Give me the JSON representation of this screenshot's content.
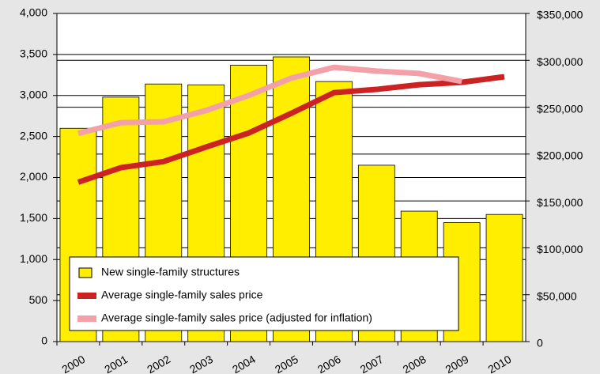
{
  "chart_data": {
    "type": "bar-line",
    "categories": [
      "2000",
      "2001",
      "2002",
      "2003",
      "2004",
      "2005",
      "2006",
      "2007",
      "2008",
      "2009",
      "2010"
    ],
    "series": [
      {
        "name": "New single-family structures",
        "color": "#ffee00",
        "type": "bar",
        "values": [
          2600,
          2980,
          3140,
          3130,
          3370,
          3470,
          3170,
          2150,
          1590,
          1450,
          1550
        ]
      },
      {
        "name": "Average single-family sales price",
        "color": "#cc2222",
        "type": "line",
        "axis": "y2",
        "values": [
          170000,
          185500,
          192000,
          207500,
          222500,
          243500,
          265500,
          269000,
          274000,
          276500,
          282500
        ]
      },
      {
        "name": "Average single-family sales price (adjusted for inflation)",
        "color": "#f4a0a8",
        "type": "line",
        "axis": "y2",
        "values": [
          222000,
          233500,
          234500,
          246500,
          262500,
          281000,
          292500,
          288500,
          286000,
          277500,
          null
        ]
      }
    ],
    "ylim": [
      0,
      4000
    ],
    "yticks": [
      0,
      500,
      {
        "value": 1000,
        "label": "1,000"
      },
      {
        "value": 1500,
        "label": "1,500"
      },
      {
        "value": 2000,
        "label": "2,000"
      },
      {
        "value": 2500,
        "label": "2,500"
      },
      {
        "value": 3000,
        "label": "3,000"
      },
      {
        "value": 3500,
        "label": "3,500"
      },
      {
        "value": 4000,
        "label": "4,000"
      }
    ],
    "y2lim": [
      0,
      350000
    ],
    "y2ticks": [
      0,
      {
        "value": 50000,
        "label": "$50,000"
      },
      {
        "value": 100000,
        "label": "$100,000"
      },
      {
        "value": 150000,
        "label": "$150,000"
      },
      {
        "value": 200000,
        "label": "$200,000"
      },
      {
        "value": 250000,
        "label": "$250,000"
      },
      {
        "value": 300000,
        "label": "$300,000"
      },
      {
        "value": 350000,
        "label": "$350,000"
      }
    ],
    "grid": true,
    "legend": "bottom-left"
  }
}
